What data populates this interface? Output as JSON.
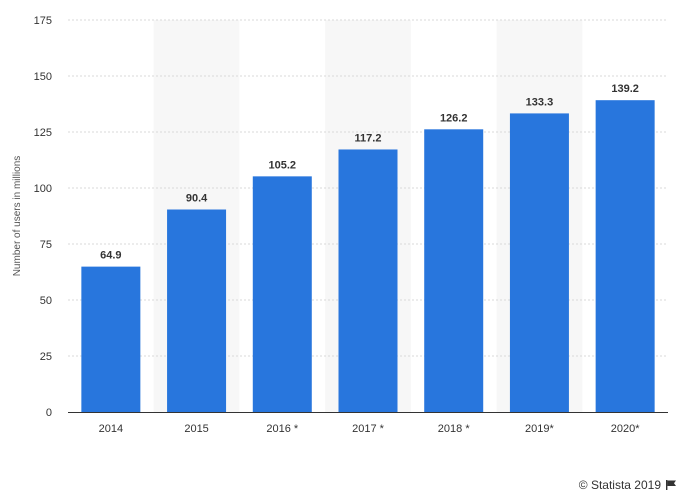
{
  "chart_data": {
    "type": "bar",
    "categories": [
      "2014",
      "2015",
      "2016 *",
      "2017 *",
      "2018 *",
      "2019*",
      "2020*"
    ],
    "values": [
      64.9,
      90.4,
      105.2,
      117.2,
      126.2,
      133.3,
      139.2
    ],
    "data_labels": [
      "64.9",
      "90.4",
      "105.2",
      "117.2",
      "126.2",
      "133.3",
      "139.2"
    ],
    "title": "",
    "xlabel": "",
    "ylabel": "Number of users in millions",
    "ylim": [
      0,
      175
    ],
    "yticks": [
      0,
      25,
      50,
      75,
      100,
      125,
      150,
      175
    ],
    "ytick_labels": [
      "0",
      "25",
      "50",
      "75",
      "100",
      "125",
      "150",
      "175"
    ],
    "grid": "horizontal dashed",
    "bar_color": "#2876dd",
    "band_color": "#f7f7f7",
    "legend": "none"
  },
  "footer": {
    "credit": "© Statista 2019",
    "credit_icon": "flag-icon"
  }
}
